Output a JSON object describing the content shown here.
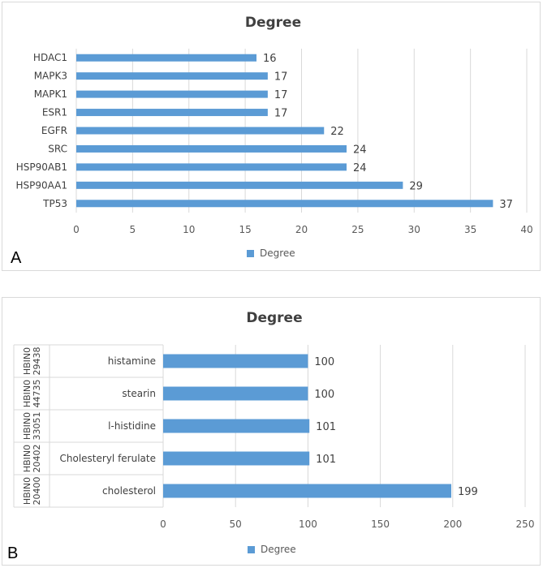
{
  "chart_data": [
    {
      "panel": "A",
      "type": "bar",
      "orientation": "horizontal",
      "title": "Degree",
      "categories": [
        "HDAC1",
        "MAPK3",
        "MAPK1",
        "ESR1",
        "EGFR",
        "SRC",
        "HSP90AB1",
        "HSP90AA1",
        "TP53"
      ],
      "series": [
        {
          "name": "Degree",
          "values": [
            16,
            17,
            17,
            17,
            22,
            24,
            24,
            29,
            37
          ]
        }
      ],
      "xlim": [
        0,
        40
      ],
      "xticks": [
        "0",
        "5",
        "10",
        "15",
        "20",
        "25",
        "30",
        "35",
        "40"
      ],
      "legend": "bottom",
      "color": "#5b9bd5"
    },
    {
      "panel": "B",
      "type": "bar",
      "orientation": "horizontal",
      "title": "Degree",
      "categories": [
        "histamine",
        "stearin",
        "l-histidine",
        "Cholesteryl ferulate",
        "cholesterol"
      ],
      "groups": [
        "HBIN029438",
        "HBIN044735",
        "HBIN033051",
        "HBIN020402",
        "HBIN020400"
      ],
      "groups_display": [
        [
          "HBIN0",
          "29438"
        ],
        [
          "HBIN0",
          "44735"
        ],
        [
          "HBIN0",
          "33051"
        ],
        [
          "HBIN0",
          "20402"
        ],
        [
          "HBIN0",
          "20400"
        ]
      ],
      "series": [
        {
          "name": "Degree",
          "values": [
            100,
            100,
            101,
            101,
            199
          ]
        }
      ],
      "xlim": [
        0,
        250
      ],
      "xticks": [
        "0",
        "50",
        "100",
        "150",
        "200",
        "250"
      ],
      "legend": "bottom",
      "color": "#5b9bd5"
    }
  ]
}
